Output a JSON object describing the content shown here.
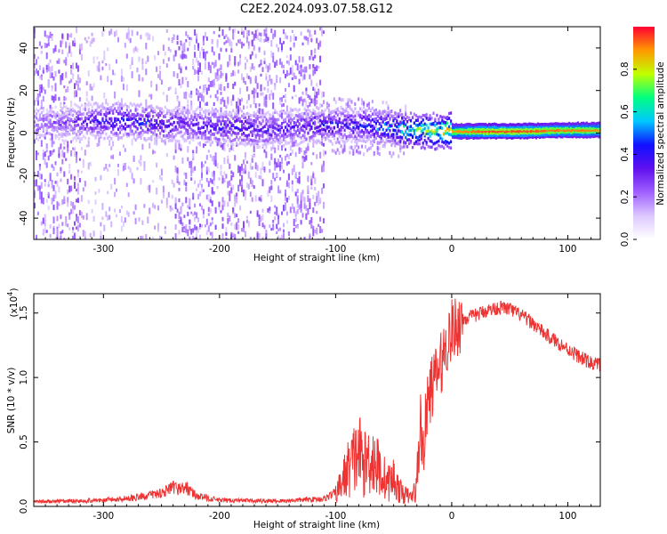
{
  "title": "C2E2.2024.093.07.58.G12",
  "colors": {
    "snr_line": "#ee3333",
    "colormap": [
      "#ffffff",
      "#dcc8ff",
      "#a060ff",
      "#6010ee",
      "#1010ff",
      "#00c8ff",
      "#00ff80",
      "#c0ff00",
      "#ff9900",
      "#ff0033"
    ]
  },
  "chart_data": [
    {
      "type": "heatmap",
      "title": "",
      "xlabel": "Height of straight line (km)",
      "ylabel": "Frequency (Hz)",
      "xlim": [
        -360,
        128
      ],
      "ylim": [
        -50,
        50
      ],
      "xticks": [
        -300,
        -200,
        -100,
        0,
        100
      ],
      "yticks": [
        -40,
        -20,
        0,
        20,
        40
      ],
      "colorbar": {
        "label": "Normalized spectral amplitude",
        "range": [
          0,
          1
        ],
        "ticks": [
          "0.0",
          "0.2",
          "0.4",
          "0.6",
          "0.8"
        ]
      },
      "ridge": {
        "x": [
          -360,
          -330,
          -300,
          -260,
          -230,
          -200,
          -160,
          -130,
          -110,
          -95,
          -80,
          -60,
          -45,
          -30,
          -15,
          0,
          30,
          60,
          90,
          128
        ],
        "frequency": [
          5,
          5,
          6,
          5,
          4,
          3,
          2,
          3,
          4,
          4,
          4,
          3,
          2,
          1,
          1,
          1,
          1,
          1,
          1.5,
          1.5
        ],
        "peak_amplitude": [
          0.25,
          0.3,
          0.45,
          0.45,
          0.35,
          0.42,
          0.4,
          0.38,
          0.45,
          0.45,
          0.45,
          0.55,
          0.65,
          0.75,
          0.82,
          0.88,
          0.95,
          0.95,
          0.92,
          0.9
        ]
      }
    },
    {
      "type": "line",
      "title": "",
      "xlabel": "Height of straight line (km)",
      "ylabel": "SNR (10 * v/v)",
      "y_multiplier": "(x10",
      "y_multiplier_exp": "4",
      "y_multiplier_close": ")",
      "xlim": [
        -360,
        128
      ],
      "ylim": [
        0,
        16500
      ],
      "xticks": [
        -300,
        -200,
        -100,
        0,
        100
      ],
      "yticks": [
        0,
        5000,
        10000,
        15000
      ],
      "ytick_labels": [
        "0.0",
        "0.5",
        "1.0",
        "1.5"
      ],
      "series": [
        {
          "x": [
            -360,
            -300,
            -270,
            -250,
            -240,
            -228,
            -220,
            -200,
            -150,
            -110,
            -100,
            -95,
            -90,
            -80,
            -75,
            -70,
            -60,
            -55,
            -50,
            -45,
            -40,
            -35,
            -30,
            -27,
            -25,
            -20,
            -15,
            -10,
            -5,
            0,
            10,
            20,
            30,
            40,
            45,
            50,
            60,
            70,
            80,
            90,
            100,
            110,
            120,
            128
          ],
          "y": [
            300,
            400,
            600,
            900,
            1200,
            1200,
            700,
            400,
            350,
            500,
            900,
            1800,
            2800,
            4200,
            3200,
            4000,
            2500,
            1800,
            2200,
            1200,
            900,
            700,
            1500,
            6800,
            4200,
            8500,
            9800,
            10800,
            12500,
            13600,
            14500,
            14800,
            15200,
            15400,
            15400,
            15300,
            14800,
            14200,
            13400,
            12800,
            12200,
            11600,
            11100,
            11000
          ]
        }
      ]
    }
  ]
}
